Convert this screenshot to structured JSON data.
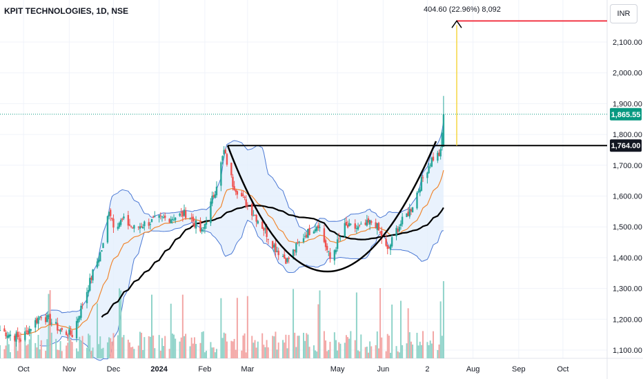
{
  "header": {
    "symbol_title": "KPIT TECHNOLOGIES, 1D, NSE"
  },
  "currency_button": "INR",
  "measure_label": "404.60 (22.96%) 8,092",
  "colors": {
    "up": "#26a69a",
    "down": "#ef5350",
    "vol_up": "#8fd3c9",
    "vol_down": "#f3a6a5",
    "band": "#4a78d4",
    "ema": "#f0862f",
    "ma": "#000000",
    "target": "#f23645",
    "last_tag": "#089981",
    "level_tag": "#131722"
  },
  "price_tags": {
    "last": "1,865.55",
    "level": "1,764.00"
  },
  "chart_data": {
    "type": "candlestick",
    "title": "KPIT TECHNOLOGIES, 1D, NSE",
    "y_ticks": [
      1100,
      1200,
      1300,
      1400,
      1500,
      1600,
      1700,
      1800,
      1900,
      2000,
      2100
    ],
    "y_tick_labels": [
      "1,100.00",
      "1,200.00",
      "1,300.00",
      "1,400.00",
      "1,500.00",
      "1,600.00",
      "1,700.00",
      "1,800.00",
      "1,900.00",
      "2,000.00",
      "2,100.00"
    ],
    "ylim": [
      1085,
      2200
    ],
    "x_tick_labels": [
      "Oct",
      "Nov",
      "Dec",
      "2024",
      "Feb",
      "Mar",
      "May",
      "Jun",
      "2",
      "Aug",
      "Sep",
      "Oct"
    ],
    "x_tick_dates": [
      "2023-10-01",
      "2023-11-01",
      "2023-12-01",
      "2024-01-01",
      "2024-02-01",
      "2024-03-01",
      "2024-05-01",
      "2024-06-01",
      "2024-07-01",
      "2024-08-01",
      "2024-09-01",
      "2024-10-01"
    ],
    "x_range": [
      "2023-09-15",
      "2024-10-31"
    ],
    "last_price": 1865.55,
    "resistance_level": 1764.0,
    "target_level": 2168.6,
    "measure": {
      "change": 404.6,
      "percent": 22.96
    },
    "ohlc_keypoints": [
      {
        "date": "2023-09-15",
        "close": 1165
      },
      {
        "date": "2023-09-22",
        "close": 1150
      },
      {
        "date": "2023-09-29",
        "close": 1135
      },
      {
        "date": "2023-10-06",
        "close": 1175
      },
      {
        "date": "2023-10-13",
        "close": 1215
      },
      {
        "date": "2023-10-20",
        "close": 1190
      },
      {
        "date": "2023-10-27",
        "close": 1160
      },
      {
        "date": "2023-11-03",
        "close": 1150
      },
      {
        "date": "2023-11-10",
        "close": 1250
      },
      {
        "date": "2023-11-17",
        "close": 1350
      },
      {
        "date": "2023-11-24",
        "close": 1440
      },
      {
        "date": "2023-11-28",
        "close": 1560
      },
      {
        "date": "2023-12-01",
        "close": 1510
      },
      {
        "date": "2023-12-08",
        "close": 1520
      },
      {
        "date": "2023-12-15",
        "close": 1495
      },
      {
        "date": "2023-12-22",
        "close": 1510
      },
      {
        "date": "2024-01-01",
        "close": 1525
      },
      {
        "date": "2024-01-10",
        "close": 1530
      },
      {
        "date": "2024-01-20",
        "close": 1545
      },
      {
        "date": "2024-01-30",
        "close": 1480
      },
      {
        "date": "2024-02-08",
        "close": 1620
      },
      {
        "date": "2024-02-14",
        "close": 1745
      },
      {
        "date": "2024-02-20",
        "close": 1640
      },
      {
        "date": "2024-03-01",
        "close": 1570
      },
      {
        "date": "2024-03-10",
        "close": 1510
      },
      {
        "date": "2024-03-20",
        "close": 1430
      },
      {
        "date": "2024-03-28",
        "close": 1390
      },
      {
        "date": "2024-04-08",
        "close": 1470
      },
      {
        "date": "2024-04-18",
        "close": 1510
      },
      {
        "date": "2024-04-26",
        "close": 1395
      },
      {
        "date": "2024-05-06",
        "close": 1500
      },
      {
        "date": "2024-05-16",
        "close": 1495
      },
      {
        "date": "2024-05-26",
        "close": 1520
      },
      {
        "date": "2024-06-04",
        "close": 1420
      },
      {
        "date": "2024-06-10",
        "close": 1490
      },
      {
        "date": "2024-06-20",
        "close": 1560
      },
      {
        "date": "2024-06-28",
        "close": 1660
      },
      {
        "date": "2024-07-04",
        "close": 1720
      },
      {
        "date": "2024-07-10",
        "close": 1740
      },
      {
        "date": "2024-07-12",
        "close": 1865.55
      }
    ]
  }
}
